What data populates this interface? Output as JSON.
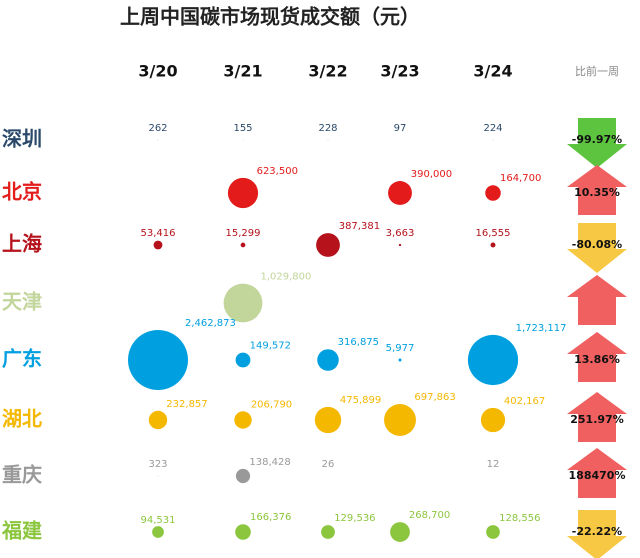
{
  "chart_data": {
    "type": "bubble",
    "title": "上周中国碳市场现货成交额（元）",
    "categories": [
      "3/20",
      "3/21",
      "3/22",
      "3/23",
      "3/24"
    ],
    "change_header": "比前一周",
    "series": [
      {
        "name": "深圳",
        "color": "#2b4a6b",
        "values": [
          262,
          155,
          228,
          97,
          224
        ],
        "value_labels": [
          "262",
          "155",
          "228",
          "97",
          "224"
        ],
        "change": -99.97,
        "change_label": "-99.97%",
        "arrow": "down",
        "arrow_color": "#5dc43f"
      },
      {
        "name": "北京",
        "color": "#e31b1b",
        "values": [
          null,
          623500,
          null,
          390000,
          164700
        ],
        "value_labels": [
          null,
          "623,500",
          null,
          "390,000",
          "164,700"
        ],
        "change": 10.35,
        "change_label": "10.35%",
        "arrow": "up",
        "arrow_color": "#f06060"
      },
      {
        "name": "上海",
        "color": "#b5121b",
        "values": [
          53416,
          15299,
          387381,
          3663,
          16555
        ],
        "value_labels": [
          "53,416",
          "15,299",
          "387,381",
          "3,663",
          "16,555"
        ],
        "change": -80.08,
        "change_label": "-80.08%",
        "arrow": "down",
        "arrow_color": "#f7c843"
      },
      {
        "name": "天津",
        "color": "#c2d59b",
        "values": [
          null,
          1029800,
          null,
          null,
          null
        ],
        "value_labels": [
          null,
          "1,029,800",
          null,
          null,
          null
        ],
        "arrow": "up",
        "arrow_color": "#f06060"
      },
      {
        "name": "广东",
        "color": "#00a0e0",
        "values": [
          2462873,
          149572,
          316875,
          5977,
          1723117
        ],
        "value_labels": [
          "2,462,873",
          "149,572",
          "316,875",
          "5,977",
          "1,723,117"
        ],
        "change": 13.86,
        "change_label": "13.86%",
        "arrow": "up",
        "arrow_color": "#f06060"
      },
      {
        "name": "湖北",
        "color": "#f5b800",
        "values": [
          232857,
          206790,
          475899,
          697863,
          402167
        ],
        "value_labels": [
          "232,857",
          "206,790",
          "475,899",
          "697,863",
          "402,167"
        ],
        "change": 251.97,
        "change_label": "251.97%",
        "arrow": "up",
        "arrow_color": "#f06060"
      },
      {
        "name": "重庆",
        "color": "#999999",
        "values": [
          323,
          138428,
          26,
          null,
          12
        ],
        "value_labels": [
          "323",
          "138,428",
          "26",
          null,
          "12"
        ],
        "change": 188470,
        "change_label": "188470%",
        "arrow": "up",
        "arrow_color": "#f06060"
      },
      {
        "name": "福建",
        "color": "#8cc63f",
        "values": [
          94531,
          166376,
          129536,
          268700,
          128556
        ],
        "value_labels": [
          "94,531",
          "166,376",
          "129,536",
          "268,700",
          "128,556"
        ],
        "change": -22.22,
        "change_label": "-22.22%",
        "arrow": "down",
        "arrow_color": "#f7c843"
      }
    ]
  }
}
